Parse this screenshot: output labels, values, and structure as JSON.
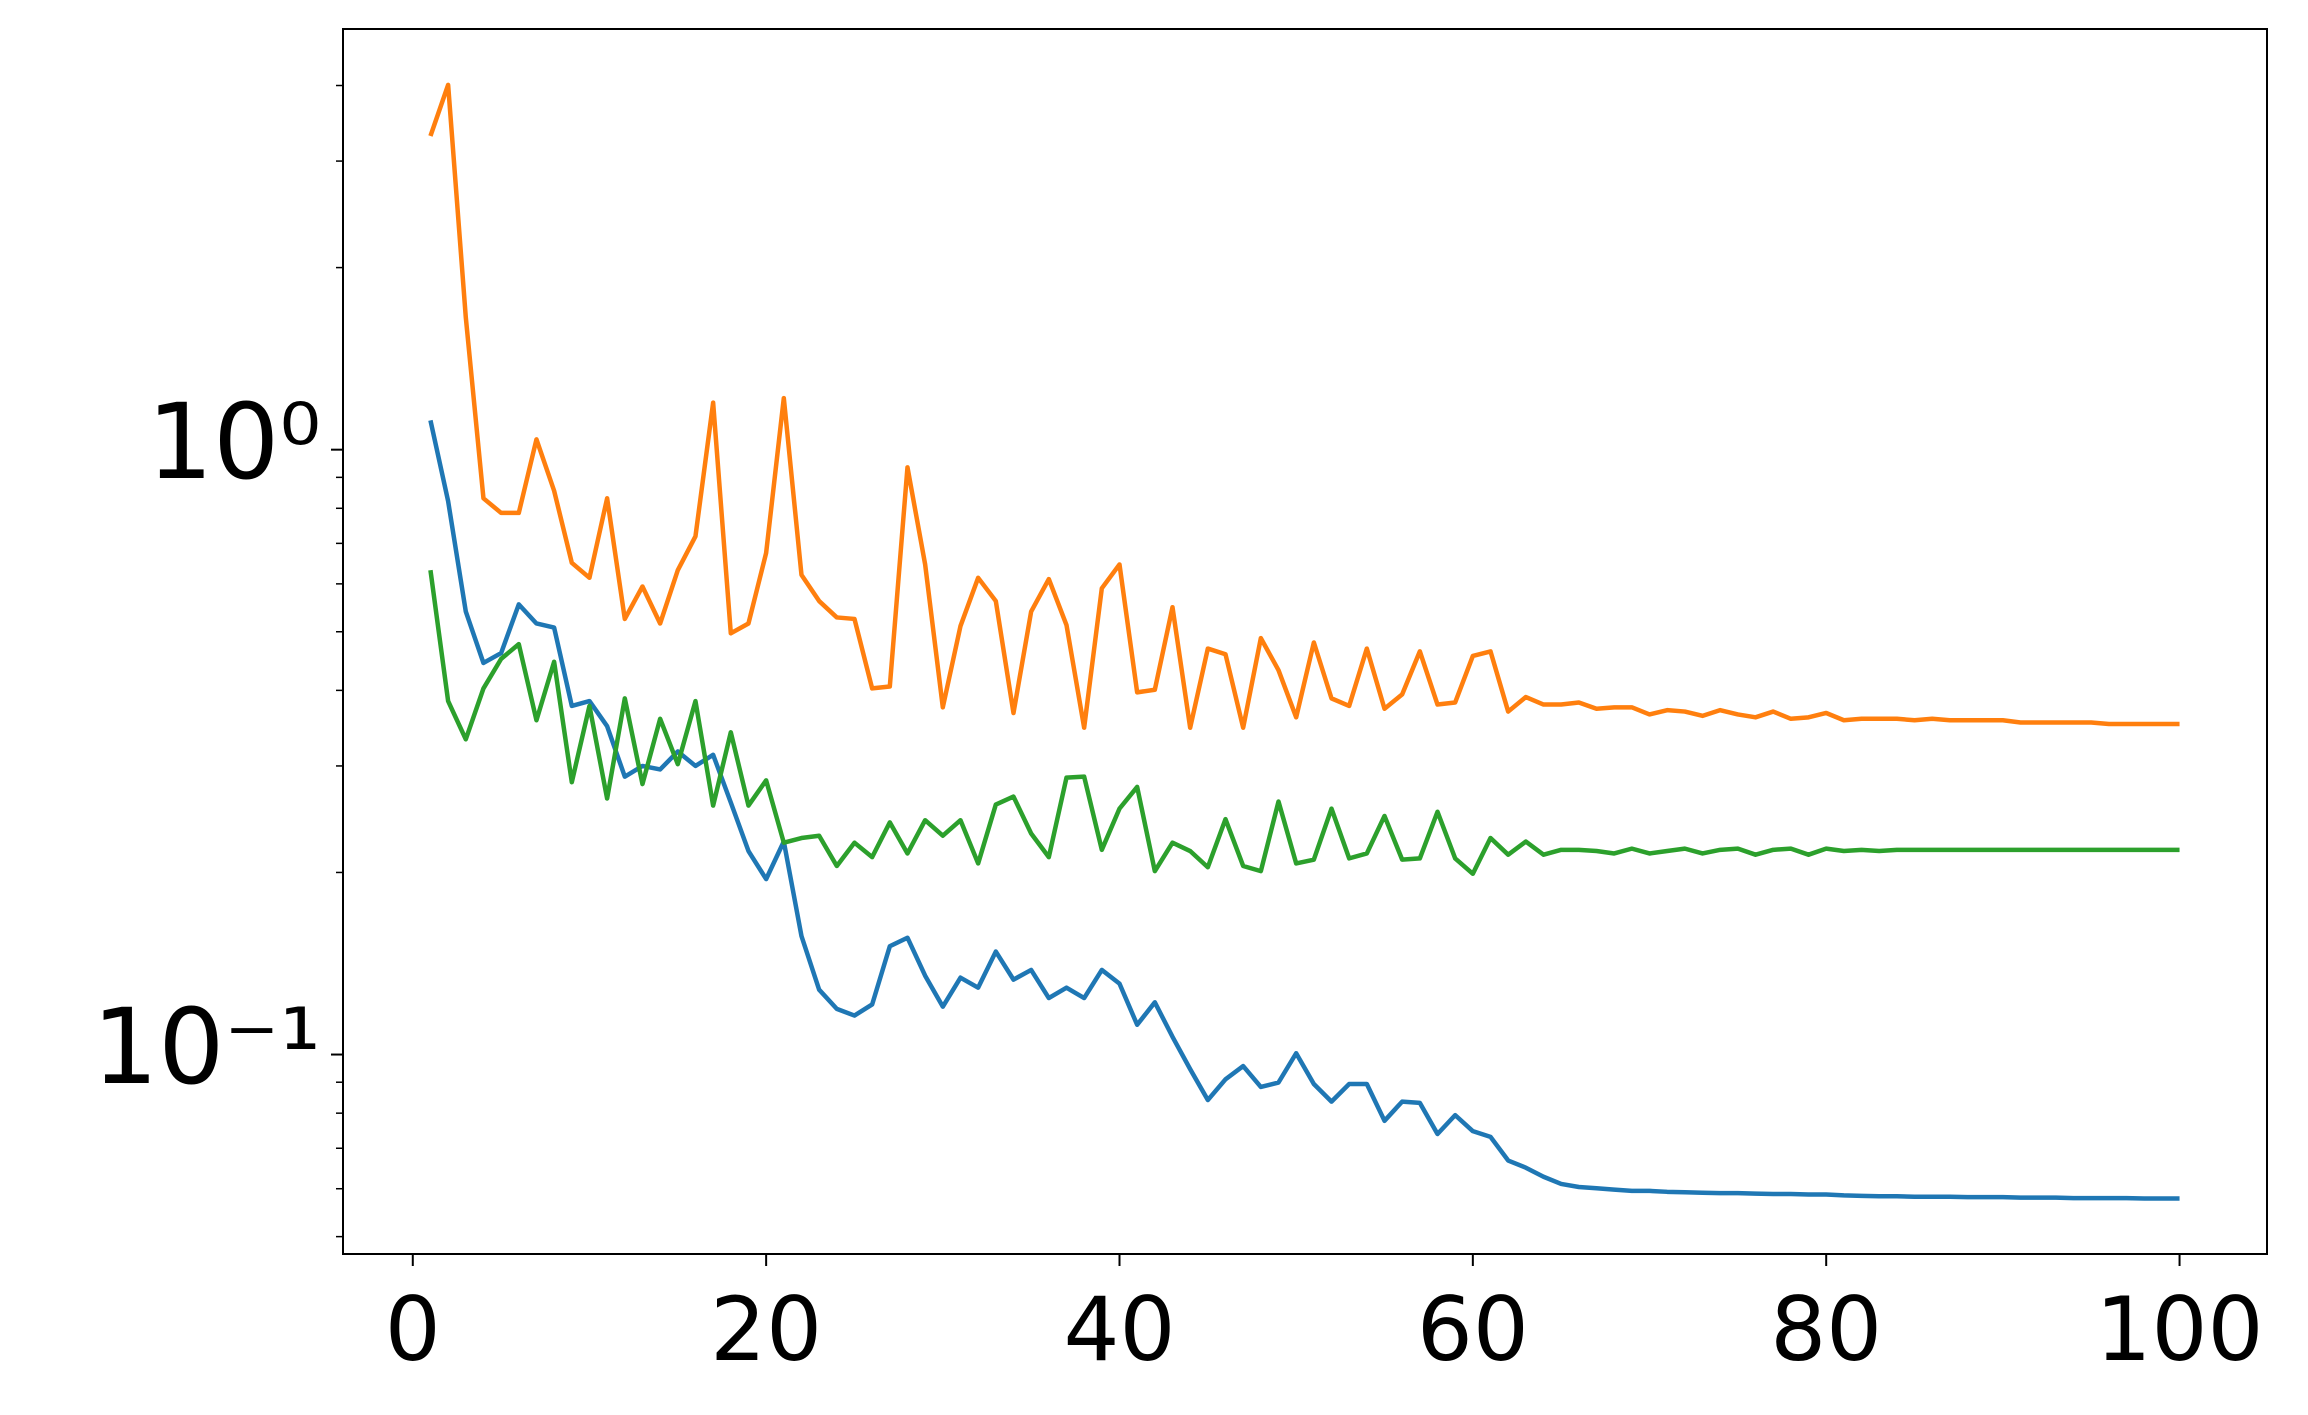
{
  "chart_data": {
    "type": "line",
    "yscale": "log",
    "x": [
      1,
      2,
      3,
      4,
      5,
      6,
      7,
      8,
      9,
      10,
      11,
      12,
      13,
      14,
      15,
      16,
      17,
      18,
      19,
      20,
      21,
      22,
      23,
      24,
      25,
      26,
      27,
      28,
      29,
      30,
      31,
      32,
      33,
      34,
      35,
      36,
      37,
      38,
      39,
      40,
      41,
      42,
      43,
      44,
      45,
      46,
      47,
      48,
      49,
      50,
      51,
      52,
      53,
      54,
      55,
      56,
      57,
      58,
      59,
      60,
      61,
      62,
      63,
      64,
      65,
      66,
      67,
      68,
      69,
      70,
      71,
      72,
      73,
      74,
      75,
      76,
      77,
      78,
      79,
      80,
      81,
      82,
      83,
      84,
      85,
      86,
      87,
      88,
      89,
      90,
      91,
      92,
      93,
      94,
      95,
      96,
      97,
      98,
      99,
      100
    ],
    "series": [
      {
        "color": "#1f77b4",
        "values": [
          1.118,
          0.822,
          0.54,
          0.444,
          0.461,
          0.555,
          0.516,
          0.508,
          0.377,
          0.384,
          0.349,
          0.288,
          0.3,
          0.296,
          0.317,
          0.3,
          0.313,
          0.261,
          0.217,
          0.195,
          0.225,
          0.157,
          0.128,
          0.119,
          0.116,
          0.121,
          0.151,
          0.156,
          0.135,
          0.12,
          0.134,
          0.129,
          0.148,
          0.133,
          0.138,
          0.124,
          0.129,
          0.124,
          0.138,
          0.131,
          0.112,
          0.122,
          0.107,
          0.0946,
          0.0841,
          0.091,
          0.0957,
          0.0884,
          0.0899,
          0.1005,
          0.0894,
          0.0836,
          0.0894,
          0.0894,
          0.0777,
          0.0836,
          0.0832,
          0.0739,
          0.0794,
          0.0747,
          0.0731,
          0.0668,
          0.065,
          0.0628,
          0.0611,
          0.0604,
          0.0601,
          0.0598,
          0.0595,
          0.0595,
          0.0593,
          0.0592,
          0.0591,
          0.059,
          0.059,
          0.0589,
          0.0588,
          0.0588,
          0.0587,
          0.0587,
          0.0585,
          0.0584,
          0.0583,
          0.0583,
          0.0582,
          0.0582,
          0.0582,
          0.0581,
          0.0581,
          0.0581,
          0.058,
          0.058,
          0.058,
          0.0579,
          0.0579,
          0.0579,
          0.0579,
          0.0578,
          0.0578,
          0.0578
        ]
      },
      {
        "color": "#ff7f0e",
        "values": [
          3.3,
          4.01,
          1.655,
          0.831,
          0.786,
          0.786,
          1.04,
          0.855,
          0.65,
          0.614,
          0.831,
          0.525,
          0.594,
          0.516,
          0.632,
          0.719,
          1.196,
          0.497,
          0.516,
          0.675,
          1.217,
          0.621,
          0.562,
          0.528,
          0.525,
          0.403,
          0.406,
          0.935,
          0.646,
          0.375,
          0.511,
          0.614,
          0.562,
          0.367,
          0.54,
          0.611,
          0.513,
          0.347,
          0.59,
          0.646,
          0.397,
          0.401,
          0.549,
          0.347,
          0.469,
          0.459,
          0.347,
          0.488,
          0.432,
          0.361,
          0.48,
          0.388,
          0.377,
          0.469,
          0.373,
          0.394,
          0.464,
          0.379,
          0.382,
          0.456,
          0.464,
          0.369,
          0.39,
          0.379,
          0.379,
          0.382,
          0.373,
          0.375,
          0.375,
          0.365,
          0.371,
          0.369,
          0.363,
          0.371,
          0.365,
          0.361,
          0.369,
          0.359,
          0.361,
          0.367,
          0.357,
          0.359,
          0.359,
          0.359,
          0.357,
          0.359,
          0.357,
          0.357,
          0.357,
          0.357,
          0.354,
          0.354,
          0.354,
          0.354,
          0.354,
          0.352,
          0.352,
          0.352,
          0.352,
          0.352
        ]
      },
      {
        "color": "#2ca02c",
        "values": [
          0.632,
          0.384,
          0.332,
          0.403,
          0.451,
          0.477,
          0.357,
          0.446,
          0.282,
          0.377,
          0.265,
          0.388,
          0.28,
          0.359,
          0.302,
          0.384,
          0.258,
          0.341,
          0.258,
          0.284,
          0.224,
          0.228,
          0.23,
          0.205,
          0.224,
          0.212,
          0.242,
          0.215,
          0.244,
          0.23,
          0.244,
          0.207,
          0.259,
          0.267,
          0.232,
          0.212,
          0.287,
          0.288,
          0.218,
          0.255,
          0.277,
          0.201,
          0.224,
          0.217,
          0.204,
          0.245,
          0.205,
          0.201,
          0.262,
          0.207,
          0.21,
          0.255,
          0.211,
          0.215,
          0.248,
          0.21,
          0.211,
          0.252,
          0.211,
          0.199,
          0.228,
          0.214,
          0.225,
          0.214,
          0.218,
          0.218,
          0.217,
          0.215,
          0.219,
          0.215,
          0.217,
          0.219,
          0.215,
          0.218,
          0.219,
          0.214,
          0.218,
          0.219,
          0.214,
          0.219,
          0.217,
          0.218,
          0.217,
          0.218,
          0.218,
          0.218,
          0.218,
          0.218,
          0.218,
          0.218,
          0.218,
          0.218,
          0.218,
          0.218,
          0.218,
          0.218,
          0.218,
          0.218,
          0.218,
          0.218
        ]
      }
    ],
    "xlim": [
      -3.95,
      104.95
    ],
    "xticks": [
      0,
      20,
      40,
      60,
      80,
      100
    ],
    "ylim": [
      0.0468,
      4.96
    ],
    "yticks": [
      {
        "value": 0.1,
        "label": "10⁻¹"
      },
      {
        "value": 1,
        "label": "10⁰"
      }
    ],
    "yminorticks": [
      0.05,
      0.06,
      0.07,
      0.08,
      0.09,
      0.2,
      0.3,
      0.4,
      0.5,
      0.6,
      0.7,
      0.8,
      0.9,
      2,
      3,
      4
    ]
  }
}
